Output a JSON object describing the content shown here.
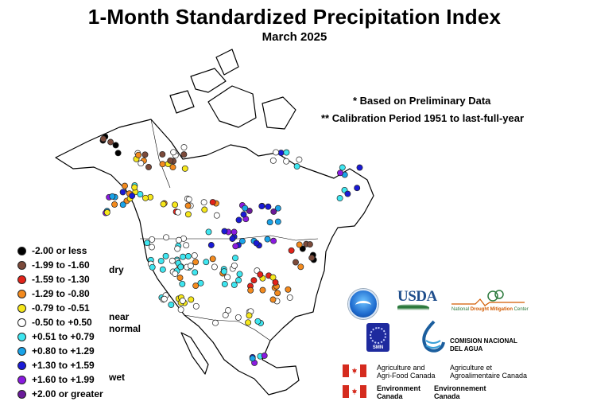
{
  "title": "1-Month Standardized Precipitation Index",
  "subtitle": "March 2025",
  "notes": {
    "preliminary": "* Based on Preliminary Data",
    "calibration": "** Calibration Period 1951 to last-full-year"
  },
  "legend": {
    "items": [
      {
        "label": "-2.00 or less",
        "color": "#000000"
      },
      {
        "label": "-1.99 to -1.60",
        "color": "#7b4a3a"
      },
      {
        "label": "-1.59 to -1.30",
        "color": "#e2231a"
      },
      {
        "label": "-1.29 to -0.80",
        "color": "#f38a1e"
      },
      {
        "label": "-0.79 to -0.51",
        "color": "#f6e71b"
      },
      {
        "label": "-0.50 to +0.50",
        "color": "#ffffff"
      },
      {
        "label": "+0.51 to +0.79",
        "color": "#3ee6f0"
      },
      {
        "label": "+0.80 to +1.29",
        "color": "#1aa3e8"
      },
      {
        "label": "+1.30 to +1.59",
        "color": "#1a1ad6"
      },
      {
        "label": "+1.60 to +1.99",
        "color": "#8a1ae0"
      },
      {
        "label": "+2.00 or greater",
        "color": "#6a1a9a"
      }
    ],
    "groups": {
      "dry": "dry",
      "normal": "near\nnormal",
      "wet": "wet"
    }
  },
  "logos": {
    "usda": "USDA",
    "ndmc_prefix": "National ",
    "ndmc_bold": "Drought Mitigation",
    "ndmc_suffix": " Center",
    "smn": "SMN",
    "conagua": "COMISION NACIONAL\nDEL AGUA",
    "aafc_en": "Agriculture and\nAgri-Food Canada",
    "aafc_fr": "Agriculture et\nAgroalimentaire Canada",
    "ec_en": "Environment\nCanada",
    "ec_fr": "Environnement\nCanada"
  }
}
